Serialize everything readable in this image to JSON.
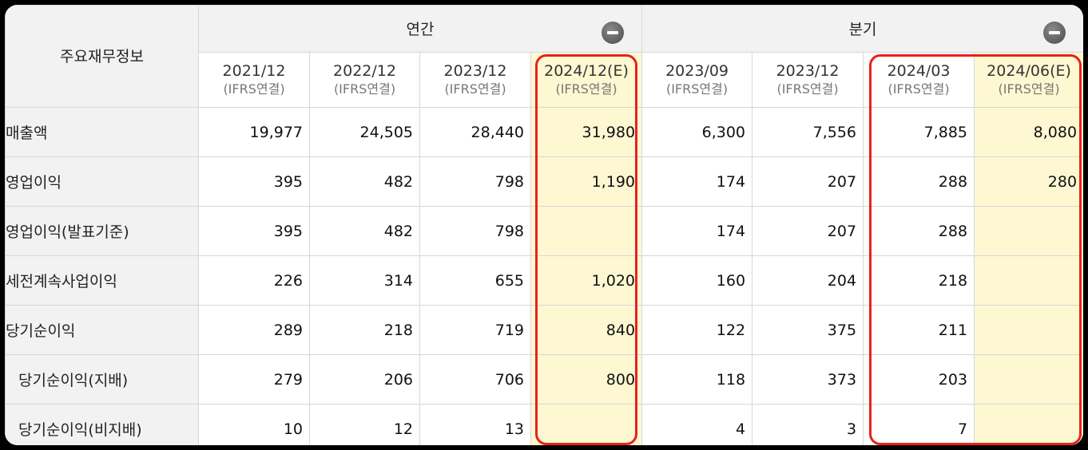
{
  "table": {
    "corner_label": "주요재무정보",
    "groups": [
      {
        "label": "연간"
      },
      {
        "label": "분기"
      }
    ],
    "periods": [
      {
        "period": "2021/12",
        "sub": "(IFRS연결)"
      },
      {
        "period": "2022/12",
        "sub": "(IFRS연결)"
      },
      {
        "period": "2023/12",
        "sub": "(IFRS연결)"
      },
      {
        "period": "2024/12(E)",
        "sub": "(IFRS연결)"
      },
      {
        "period": "2023/09",
        "sub": "(IFRS연결)"
      },
      {
        "period": "2023/12",
        "sub": "(IFRS연결)"
      },
      {
        "period": "2024/03",
        "sub": "(IFRS연결)"
      },
      {
        "period": "2024/06(E)",
        "sub": "(IFRS연결)"
      }
    ],
    "rows": [
      {
        "label": "매출액",
        "values": [
          "19,977",
          "24,505",
          "28,440",
          "31,980",
          "6,300",
          "7,556",
          "7,885",
          "8,080"
        ]
      },
      {
        "label": "영업이익",
        "values": [
          "395",
          "482",
          "798",
          "1,190",
          "174",
          "207",
          "288",
          "280"
        ]
      },
      {
        "label": "영업이익(발표기준)",
        "values": [
          "395",
          "482",
          "798",
          "",
          "174",
          "207",
          "288",
          ""
        ]
      },
      {
        "label": "세전계속사업이익",
        "values": [
          "226",
          "314",
          "655",
          "1,020",
          "160",
          "204",
          "218",
          ""
        ]
      },
      {
        "label": "당기순이익",
        "values": [
          "289",
          "218",
          "719",
          "840",
          "122",
          "375",
          "211",
          ""
        ]
      },
      {
        "label": "당기순이익(지배)",
        "values": [
          "279",
          "206",
          "706",
          "800",
          "118",
          "373",
          "203",
          ""
        ]
      },
      {
        "label": "당기순이익(비지배)",
        "values": [
          "10",
          "12",
          "13",
          "",
          "4",
          "3",
          "7",
          ""
        ]
      }
    ]
  },
  "colors": {
    "estimate_fill": "#fdf8d2",
    "highlight_border": "#e8221b",
    "header_fill": "#f2f2f2"
  }
}
